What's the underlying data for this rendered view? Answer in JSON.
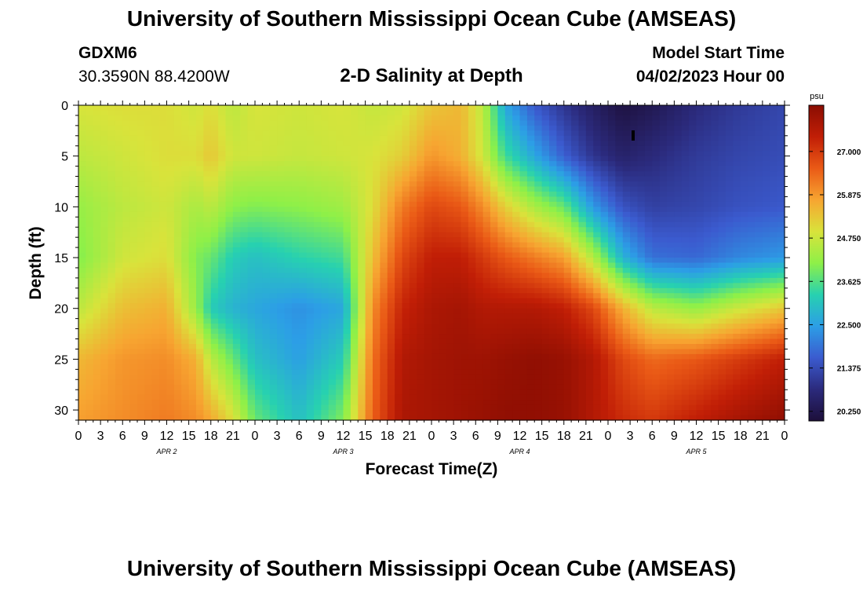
{
  "header": {
    "title": "University of Southern Mississippi Ocean Cube (AMSEAS)",
    "station_id": "GDXM6",
    "coordinates": "30.3590N  88.4200W",
    "subtitle": "2-D Salinity at Depth",
    "model_start_label": "Model Start Time",
    "model_start_value": "04/02/2023 Hour 00"
  },
  "footer": {
    "title": "University of Southern Mississippi Ocean Cube (AMSEAS)"
  },
  "chart_data": {
    "type": "heatmap",
    "title": "2-D Salinity at Depth",
    "xlabel": "Forecast Time(Z)",
    "ylabel": "Depth (ft)",
    "x_hours_range": [
      0,
      96
    ],
    "y_range": [
      0,
      31
    ],
    "y_ticks": [
      0,
      5,
      10,
      15,
      20,
      25,
      30
    ],
    "x_tick_labels": [
      "0",
      "3",
      "6",
      "9",
      "12",
      "15",
      "18",
      "21",
      "0",
      "3",
      "6",
      "9",
      "12",
      "15",
      "18",
      "21",
      "0",
      "3",
      "6",
      "9",
      "12",
      "15",
      "18",
      "21",
      "0",
      "3",
      "6",
      "9",
      "12",
      "15",
      "18",
      "21",
      "0"
    ],
    "date_labels": [
      {
        "label": "APR 2",
        "hour": 12
      },
      {
        "label": "APR 3",
        "hour": 36
      },
      {
        "label": "APR 4",
        "hour": 60
      },
      {
        "label": "APR 5",
        "hour": 84
      }
    ],
    "colorbar": {
      "unit": "psu",
      "min": 20.0,
      "max": 28.2,
      "tick_values": [
        27.0,
        25.875,
        24.75,
        23.625,
        22.5,
        21.375,
        20.25
      ],
      "tick_labels": [
        "27.000",
        "25.875",
        "24.750",
        "23.625",
        "22.500",
        "21.375",
        "20.250"
      ],
      "colors": [
        "#1d0f3a",
        "#2b2a7c",
        "#3b5bcf",
        "#2c9ee6",
        "#27d1b0",
        "#8ef048",
        "#d9e33b",
        "#f7a531",
        "#ea5a16",
        "#c11e06",
        "#8a0d02"
      ]
    },
    "profiles": [
      {
        "hour": 0,
        "depth": [
          0,
          5,
          10,
          15,
          20,
          25,
          31
        ],
        "salinity": [
          24.9,
          24.6,
          24.2,
          24.0,
          24.6,
          25.5,
          25.8
        ]
      },
      {
        "hour": 6,
        "depth": [
          0,
          5,
          10,
          15,
          20,
          25,
          31
        ],
        "salinity": [
          25.0,
          24.8,
          24.6,
          24.8,
          25.4,
          25.9,
          26.0
        ]
      },
      {
        "hour": 12,
        "depth": [
          0,
          5,
          10,
          15,
          20,
          25,
          31
        ],
        "salinity": [
          25.0,
          25.0,
          24.8,
          25.0,
          25.6,
          26.0,
          26.2
        ]
      },
      {
        "hour": 16,
        "depth": [
          0,
          5,
          10,
          15,
          20,
          25,
          31
        ],
        "salinity": [
          24.8,
          25.0,
          24.4,
          24.0,
          24.2,
          25.6,
          26.0
        ]
      },
      {
        "hour": 18,
        "depth": [
          0,
          5,
          10,
          15,
          20,
          25,
          31
        ],
        "salinity": [
          25.0,
          25.3,
          24.6,
          23.8,
          23.2,
          24.6,
          25.7
        ]
      },
      {
        "hour": 21,
        "depth": [
          0,
          5,
          10,
          15,
          20,
          25,
          31
        ],
        "salinity": [
          24.6,
          24.8,
          24.1,
          23.2,
          22.8,
          23.8,
          25.0
        ]
      },
      {
        "hour": 24,
        "depth": [
          0,
          5,
          10,
          15,
          20,
          25,
          31
        ],
        "salinity": [
          24.9,
          24.8,
          24.0,
          23.0,
          22.6,
          23.0,
          23.8
        ]
      },
      {
        "hour": 30,
        "depth": [
          0,
          5,
          10,
          15,
          20,
          25,
          31
        ],
        "salinity": [
          24.8,
          24.7,
          24.1,
          23.3,
          22.3,
          22.5,
          23.0
        ]
      },
      {
        "hour": 36,
        "depth": [
          0,
          5,
          10,
          15,
          20,
          25,
          31
        ],
        "salinity": [
          24.9,
          24.8,
          24.3,
          23.5,
          22.6,
          23.2,
          24.0
        ]
      },
      {
        "hour": 40,
        "depth": [
          0,
          5,
          10,
          15,
          20,
          25,
          31
        ],
        "salinity": [
          24.7,
          24.9,
          25.0,
          25.4,
          26.0,
          26.3,
          26.5
        ]
      },
      {
        "hour": 44,
        "depth": [
          0,
          5,
          10,
          15,
          20,
          25,
          31
        ],
        "salinity": [
          24.8,
          25.2,
          26.2,
          26.8,
          27.3,
          27.6,
          27.7
        ]
      },
      {
        "hour": 48,
        "depth": [
          0,
          5,
          10,
          15,
          20,
          25,
          31
        ],
        "salinity": [
          25.3,
          25.9,
          26.8,
          27.4,
          27.7,
          27.8,
          27.8
        ]
      },
      {
        "hour": 52,
        "depth": [
          0,
          5,
          10,
          15,
          20,
          25,
          31
        ],
        "salinity": [
          25.5,
          25.6,
          26.6,
          27.4,
          27.8,
          27.9,
          27.9
        ]
      },
      {
        "hour": 55,
        "depth": [
          0,
          5,
          10,
          15,
          20,
          25,
          31
        ],
        "salinity": [
          24.6,
          24.8,
          26.0,
          27.0,
          27.6,
          27.9,
          28.0
        ]
      },
      {
        "hour": 58,
        "depth": [
          0,
          5,
          10,
          15,
          20,
          25,
          31
        ],
        "salinity": [
          22.6,
          23.5,
          25.2,
          26.6,
          27.6,
          28.0,
          28.1
        ]
      },
      {
        "hour": 62,
        "depth": [
          0,
          5,
          10,
          15,
          20,
          25,
          31
        ],
        "salinity": [
          21.6,
          22.6,
          24.4,
          26.2,
          27.6,
          28.1,
          28.1
        ]
      },
      {
        "hour": 66,
        "depth": [
          0,
          5,
          10,
          15,
          20,
          25,
          31
        ],
        "salinity": [
          21.0,
          21.7,
          23.8,
          25.8,
          27.4,
          28.0,
          28.0
        ]
      },
      {
        "hour": 70,
        "depth": [
          0,
          5,
          10,
          15,
          20,
          25,
          31
        ],
        "salinity": [
          20.5,
          21.0,
          22.4,
          24.5,
          26.8,
          27.6,
          27.6
        ]
      },
      {
        "hour": 74,
        "depth": [
          0,
          5,
          10,
          15,
          20,
          25,
          31
        ],
        "salinity": [
          20.1,
          20.6,
          21.5,
          22.8,
          25.6,
          26.8,
          27.2
        ]
      },
      {
        "hour": 78,
        "depth": [
          0,
          5,
          10,
          15,
          20,
          25,
          31
        ],
        "salinity": [
          20.3,
          20.8,
          21.2,
          21.9,
          24.6,
          26.4,
          27.0
        ]
      },
      {
        "hour": 84,
        "depth": [
          0,
          5,
          10,
          15,
          20,
          25,
          31
        ],
        "salinity": [
          20.8,
          21.1,
          21.3,
          21.8,
          24.2,
          26.6,
          27.4
        ]
      },
      {
        "hour": 90,
        "depth": [
          0,
          5,
          10,
          15,
          20,
          25,
          31
        ],
        "salinity": [
          21.1,
          21.3,
          21.5,
          22.2,
          24.8,
          27.0,
          27.8
        ]
      },
      {
        "hour": 96,
        "depth": [
          0,
          5,
          10,
          15,
          20,
          25,
          31
        ],
        "salinity": [
          21.3,
          21.4,
          21.6,
          22.4,
          25.3,
          27.4,
          28.1
        ]
      }
    ]
  }
}
